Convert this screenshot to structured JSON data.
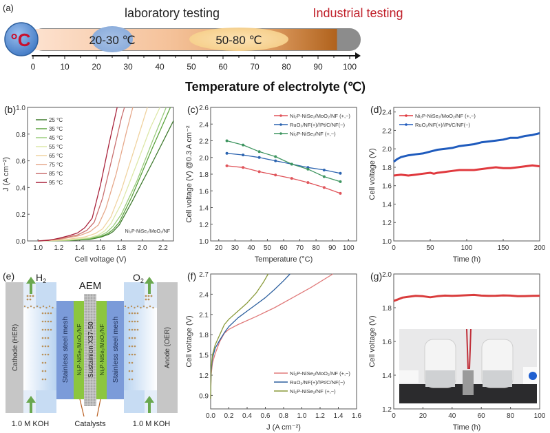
{
  "panel_a": {
    "label": "(a)",
    "badge_text": "°C",
    "lab_title": "laboratory testing",
    "industrial_title": "Industrial testing",
    "lab_range_label": "20-30 ℃",
    "industrial_range_label": "50-80 ℃",
    "lab_range": [
      20,
      30
    ],
    "industrial_range": [
      50,
      80
    ],
    "ticks": [
      0,
      10,
      20,
      30,
      40,
      50,
      60,
      70,
      80,
      90,
      100
    ],
    "axis_title": "Temperature of electrolyte (℃)",
    "colors": {
      "lab_accent": "#111111",
      "industrial_accent": "#c0202a",
      "badge": "#5b8fd1"
    }
  },
  "panel_e": {
    "label": "(e)",
    "h2": "H",
    "h2_sub": "2",
    "o2": "O",
    "o2_sub": "2",
    "aem": "AEM",
    "cathode": "Cathode (HER)",
    "anode": "Anode (OER)",
    "mesh_left": "Stainless steel mesh",
    "mesh_right": "Stainless steel mesh",
    "catalyst_left": "Ni₂P-NiSe₂/MoO₂/NF",
    "catalyst_right": "Ni₂P-NiSe₂/MoO₂/NF",
    "membrane": "Sustainion X37-50",
    "koh_left": "1.0 M KOH",
    "koh_right": "1.0 M KOH",
    "catalysts": "Catalysts"
  },
  "chart_data": [
    {
      "id": "b",
      "panel_label": "(b)",
      "type": "line",
      "xlabel": "Cell voltage (V)",
      "ylabel": "J (A cm⁻²)",
      "xlim": [
        0.9,
        2.3
      ],
      "ylim": [
        0.0,
        1.0
      ],
      "xticks": [
        1.0,
        1.2,
        1.4,
        1.6,
        1.8,
        2.0,
        2.2
      ],
      "yticks": [
        0.0,
        0.2,
        0.4,
        0.6,
        0.8,
        1.0
      ],
      "annotation": "Ni₂P-NiSe₂/MoO₂/NF",
      "legend_position": "top-left",
      "series": [
        {
          "name": "25 °C",
          "color": "#3f7a2e",
          "x": [
            1.0,
            1.3,
            1.5,
            1.6,
            1.68,
            1.72,
            1.78,
            1.9,
            2.1,
            2.3
          ],
          "y": [
            0,
            0.003,
            0.012,
            0.028,
            0.05,
            0.07,
            0.12,
            0.29,
            0.59,
            0.9
          ]
        },
        {
          "name": "35 °C",
          "color": "#5aa23d",
          "x": [
            1.0,
            1.3,
            1.5,
            1.6,
            1.67,
            1.72,
            1.78,
            1.9,
            2.1,
            2.27
          ],
          "y": [
            0,
            0.004,
            0.015,
            0.032,
            0.055,
            0.085,
            0.14,
            0.33,
            0.7,
            1.0
          ]
        },
        {
          "name": "45 °C",
          "color": "#9acd7d",
          "x": [
            1.0,
            1.3,
            1.5,
            1.6,
            1.66,
            1.72,
            1.8,
            1.95,
            2.1,
            2.23
          ],
          "y": [
            0,
            0.005,
            0.02,
            0.04,
            0.065,
            0.11,
            0.2,
            0.45,
            0.75,
            1.0
          ]
        },
        {
          "name": "55 °C",
          "color": "#dde8a8",
          "x": [
            1.0,
            1.3,
            1.5,
            1.58,
            1.64,
            1.7,
            1.8,
            1.95,
            2.08,
            2.17
          ],
          "y": [
            0,
            0.007,
            0.025,
            0.045,
            0.075,
            0.13,
            0.28,
            0.58,
            0.85,
            1.0
          ]
        },
        {
          "name": "65 °C",
          "color": "#f0d3a0",
          "x": [
            1.0,
            1.25,
            1.45,
            1.55,
            1.62,
            1.7,
            1.8,
            1.95,
            2.05
          ],
          "y": [
            0,
            0.008,
            0.03,
            0.055,
            0.09,
            0.18,
            0.38,
            0.75,
            1.0
          ]
        },
        {
          "name": "75 °C",
          "color": "#e6a88a",
          "x": [
            1.0,
            1.2,
            1.4,
            1.5,
            1.58,
            1.65,
            1.75,
            1.85,
            1.91
          ],
          "y": [
            0,
            0.01,
            0.04,
            0.07,
            0.12,
            0.24,
            0.5,
            0.82,
            1.0
          ]
        },
        {
          "name": "85 °C",
          "color": "#c96e6e",
          "x": [
            1.0,
            1.2,
            1.38,
            1.47,
            1.54,
            1.62,
            1.72,
            1.8,
            1.83
          ],
          "y": [
            0,
            0.015,
            0.045,
            0.08,
            0.14,
            0.32,
            0.65,
            0.92,
            1.0
          ]
        },
        {
          "name": "95 °C",
          "color": "#a8213a",
          "x": [
            1.0,
            1.1,
            1.2,
            1.3,
            1.38,
            1.45,
            1.52,
            1.6,
            1.68,
            1.76
          ],
          "y": [
            0,
            0.004,
            0.02,
            0.04,
            0.06,
            0.1,
            0.17,
            0.42,
            0.72,
            1.0
          ]
        }
      ]
    },
    {
      "id": "c",
      "panel_label": "(c)",
      "type": "line",
      "xlabel": "Temperature (°C)",
      "ylabel": "Cell voltage (V) @0.3 A cm⁻²",
      "xlim": [
        15,
        105
      ],
      "ylim": [
        1.0,
        2.6
      ],
      "xticks": [
        20,
        30,
        40,
        50,
        60,
        70,
        80,
        90,
        100
      ],
      "yticks": [
        1.0,
        1.2,
        1.4,
        1.6,
        1.8,
        2.0,
        2.2,
        2.4,
        2.6
      ],
      "legend_position": "top-right",
      "x": [
        25,
        35,
        45,
        55,
        65,
        75,
        85,
        95
      ],
      "series": [
        {
          "name": "Ni₂P-NiSe₂/MoO₂/NF (+,−)",
          "color": "#e0545a",
          "values": [
            1.9,
            1.88,
            1.83,
            1.79,
            1.75,
            1.7,
            1.64,
            1.57
          ]
        },
        {
          "name": "RuO₂/NF(+)//Pt/C/NF(−)",
          "color": "#2c64b0",
          "values": [
            2.05,
            2.03,
            2.0,
            1.96,
            1.92,
            1.88,
            1.85,
            1.81
          ]
        },
        {
          "name": "Ni₂P-NiSe₂/NF (+,−)",
          "color": "#3e9560",
          "values": [
            2.2,
            2.15,
            2.07,
            2.01,
            1.92,
            1.86,
            1.77,
            1.71
          ]
        }
      ]
    },
    {
      "id": "d",
      "panel_label": "(d)",
      "type": "line",
      "xlabel": "Time (h)",
      "ylabel": "Cell voltage (V)",
      "xlim": [
        0,
        200
      ],
      "ylim": [
        1.0,
        2.45
      ],
      "xticks": [
        0,
        50,
        100,
        150,
        200
      ],
      "yticks": [
        1.0,
        1.2,
        1.4,
        1.6,
        1.8,
        2.0,
        2.2,
        2.4
      ],
      "legend_position": "top-left",
      "series": [
        {
          "name": "Ni₂P-NiSe₂/MoO₂/NF (+,−)",
          "color": "#e0393e",
          "x": [
            0,
            10,
            20,
            30,
            40,
            50,
            55,
            60,
            70,
            80,
            90,
            100,
            110,
            120,
            130,
            140,
            150,
            160,
            170,
            180,
            190,
            200
          ],
          "y": [
            1.71,
            1.72,
            1.71,
            1.72,
            1.73,
            1.74,
            1.73,
            1.74,
            1.75,
            1.76,
            1.77,
            1.77,
            1.77,
            1.78,
            1.79,
            1.8,
            1.79,
            1.79,
            1.8,
            1.81,
            1.82,
            1.81
          ]
        },
        {
          "name": "RuO₂/NF(+)//Pt/C/NF(−)",
          "color": "#1f5bbd",
          "x": [
            0,
            5,
            10,
            20,
            30,
            40,
            50,
            60,
            70,
            80,
            90,
            100,
            110,
            120,
            130,
            140,
            150,
            160,
            170,
            180,
            190,
            200
          ],
          "y": [
            1.86,
            1.89,
            1.91,
            1.93,
            1.94,
            1.95,
            1.97,
            1.99,
            2.0,
            2.01,
            2.03,
            2.04,
            2.05,
            2.07,
            2.08,
            2.09,
            2.1,
            2.12,
            2.12,
            2.14,
            2.15,
            2.17
          ]
        }
      ]
    },
    {
      "id": "f",
      "panel_label": "(f)",
      "type": "line",
      "xlabel": "J (A cm⁻²)",
      "ylabel": "Cell voltage (V)",
      "xlim": [
        0.0,
        1.6
      ],
      "ylim": [
        0.7,
        2.7
      ],
      "xticks": [
        0.0,
        0.2,
        0.4,
        0.6,
        0.8,
        1.0,
        1.2,
        1.4,
        1.6
      ],
      "yticks": [
        0.9,
        1.2,
        1.5,
        1.8,
        2.1,
        2.4,
        2.7
      ],
      "legend_position": "bottom-right",
      "series": [
        {
          "name": "Ni₂P-NiSe₂/MoO₂/NF (+,−)",
          "color": "#e07a7a",
          "x": [
            0.0,
            0.005,
            0.02,
            0.05,
            0.1,
            0.15,
            0.2,
            0.3,
            0.5,
            0.7,
            0.9,
            1.1,
            1.34
          ],
          "y": [
            0.85,
            1.2,
            1.38,
            1.52,
            1.7,
            1.82,
            1.88,
            1.95,
            2.07,
            2.2,
            2.35,
            2.5,
            2.7
          ]
        },
        {
          "name": "RuO₂/NF(+)//Pt/C/NF(−)",
          "color": "#2c5f9e",
          "x": [
            0.0,
            0.005,
            0.02,
            0.05,
            0.1,
            0.15,
            0.2,
            0.3,
            0.4,
            0.5,
            0.6,
            0.7,
            0.8,
            0.87
          ],
          "y": [
            0.85,
            1.25,
            1.45,
            1.6,
            1.72,
            1.83,
            1.92,
            2.05,
            2.15,
            2.25,
            2.35,
            2.47,
            2.6,
            2.7
          ]
        },
        {
          "name": "Ni₂P-NiSe₂/NF (+,−)",
          "color": "#8a9a3a",
          "x": [
            0.0,
            0.005,
            0.02,
            0.05,
            0.1,
            0.15,
            0.2,
            0.3,
            0.4,
            0.5,
            0.58,
            0.63
          ],
          "y": [
            0.85,
            1.3,
            1.5,
            1.65,
            1.8,
            1.95,
            2.03,
            2.15,
            2.27,
            2.42,
            2.58,
            2.7
          ]
        }
      ]
    },
    {
      "id": "g",
      "panel_label": "(g)",
      "type": "line",
      "xlabel": "Time (h)",
      "ylabel": "Cell voltage (V)",
      "xlim": [
        0,
        100
      ],
      "ylim": [
        1.2,
        2.0
      ],
      "xticks": [
        0,
        20,
        40,
        60,
        80,
        100
      ],
      "yticks": [
        1.2,
        1.4,
        1.6,
        1.8,
        2.0
      ],
      "inset": "photo of AEM electrolyzer setup",
      "series": [
        {
          "name": "Ni₂P-NiSe₂/MoO₂/NF (+,−)",
          "color": "#d93c3c",
          "x": [
            0,
            3,
            6,
            10,
            15,
            20,
            25,
            30,
            35,
            40,
            45,
            50,
            55,
            60,
            65,
            70,
            75,
            80,
            85,
            90,
            95,
            100
          ],
          "y": [
            1.84,
            1.85,
            1.86,
            1.865,
            1.87,
            1.868,
            1.862,
            1.868,
            1.872,
            1.87,
            1.872,
            1.874,
            1.876,
            1.872,
            1.87,
            1.871,
            1.873,
            1.872,
            1.868,
            1.869,
            1.87,
            1.871
          ]
        }
      ]
    }
  ]
}
